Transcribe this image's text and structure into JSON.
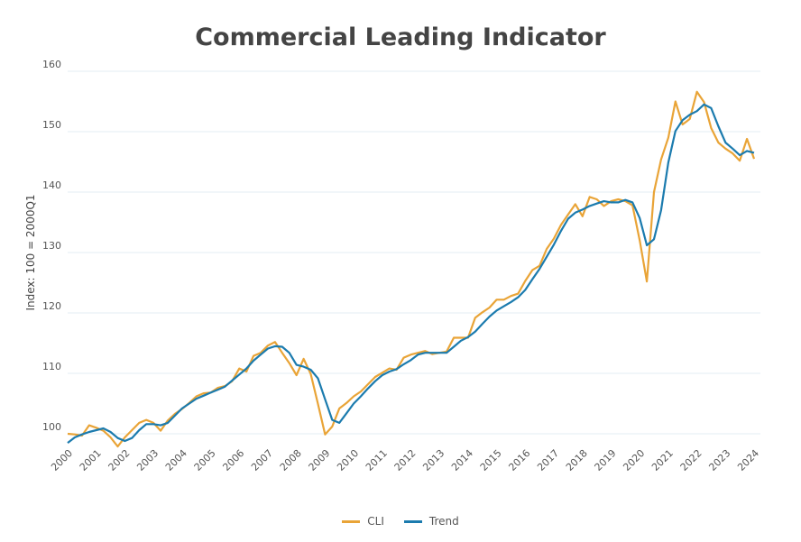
{
  "chart_data": {
    "type": "line",
    "title": "Commercial Leading Indicator",
    "ylabel": "Index: 100 = 2000Q1",
    "xlabel": "",
    "ylim": [
      97,
      160
    ],
    "yticks": [
      100,
      110,
      120,
      130,
      140,
      150,
      160
    ],
    "xticks": [
      "2000",
      "2001",
      "2002",
      "2003",
      "2004",
      "2005",
      "2006",
      "2007",
      "2008",
      "2009",
      "2010",
      "2011",
      "2012",
      "2013",
      "2014",
      "2015",
      "2016",
      "2017",
      "2018",
      "2019",
      "2020",
      "2021",
      "2022",
      "2023",
      "2024"
    ],
    "grid": "horizontal",
    "legend": "bottom",
    "x": [
      "2000Q1",
      "2000Q2",
      "2000Q3",
      "2000Q4",
      "2001Q1",
      "2001Q2",
      "2001Q3",
      "2001Q4",
      "2002Q1",
      "2002Q2",
      "2002Q3",
      "2002Q4",
      "2003Q1",
      "2003Q2",
      "2003Q3",
      "2003Q4",
      "2004Q1",
      "2004Q2",
      "2004Q3",
      "2004Q4",
      "2005Q1",
      "2005Q2",
      "2005Q3",
      "2005Q4",
      "2006Q1",
      "2006Q2",
      "2006Q3",
      "2006Q4",
      "2007Q1",
      "2007Q2",
      "2007Q3",
      "2007Q4",
      "2008Q1",
      "2008Q2",
      "2008Q3",
      "2008Q4",
      "2009Q1",
      "2009Q2",
      "2009Q3",
      "2009Q4",
      "2010Q1",
      "2010Q2",
      "2010Q3",
      "2010Q4",
      "2011Q1",
      "2011Q2",
      "2011Q3",
      "2011Q4",
      "2012Q1",
      "2012Q2",
      "2012Q3",
      "2012Q4",
      "2013Q1",
      "2013Q2",
      "2013Q3",
      "2013Q4",
      "2014Q1",
      "2014Q2",
      "2014Q3",
      "2014Q4",
      "2015Q1",
      "2015Q2",
      "2015Q3",
      "2015Q4",
      "2016Q1",
      "2016Q2",
      "2016Q3",
      "2016Q4",
      "2017Q1",
      "2017Q2",
      "2017Q3",
      "2017Q4",
      "2018Q1",
      "2018Q2",
      "2018Q3",
      "2018Q4",
      "2019Q1",
      "2019Q2",
      "2019Q3",
      "2019Q4",
      "2020Q1",
      "2020Q2",
      "2020Q3",
      "2020Q4",
      "2021Q1",
      "2021Q2",
      "2021Q3",
      "2021Q4",
      "2022Q1",
      "2022Q2",
      "2022Q3",
      "2022Q4",
      "2023Q1",
      "2023Q2",
      "2023Q3",
      "2023Q4",
      "2024Q1"
    ],
    "series": [
      {
        "name": "CLI",
        "color": "#E9A437",
        "values": [
          100.0,
          99.9,
          99.7,
          101.4,
          101.0,
          100.5,
          99.4,
          97.9,
          99.4,
          100.6,
          101.8,
          102.3,
          101.8,
          100.5,
          102.2,
          103.3,
          104.1,
          105.1,
          106.2,
          106.7,
          106.8,
          107.6,
          107.9,
          108.7,
          110.8,
          110.3,
          112.9,
          113.4,
          114.6,
          115.2,
          113.4,
          111.7,
          109.7,
          112.4,
          109.9,
          105.0,
          99.9,
          101.2,
          104.2,
          105.1,
          106.2,
          107.0,
          108.2,
          109.4,
          110.1,
          110.8,
          110.6,
          112.6,
          113.1,
          113.4,
          113.7,
          113.2,
          113.4,
          113.6,
          115.9,
          115.9,
          115.9,
          119.2,
          120.1,
          120.9,
          122.2,
          122.2,
          122.8,
          123.2,
          125.3,
          127.1,
          127.8,
          130.6,
          132.3,
          134.6,
          136.3,
          138.0,
          136.0,
          139.2,
          138.8,
          137.7,
          138.5,
          138.8,
          138.5,
          137.8,
          132.0,
          125.2,
          140.0,
          145.4,
          149.0,
          155.0,
          151.2,
          152.1,
          156.6,
          154.9,
          150.6,
          148.2,
          147.2,
          146.4,
          145.2,
          148.8,
          145.5
        ]
      },
      {
        "name": "Trend",
        "color": "#1B7BAE",
        "values": [
          98.5,
          99.4,
          99.9,
          100.3,
          100.6,
          100.9,
          100.3,
          99.3,
          98.8,
          99.3,
          100.6,
          101.6,
          101.6,
          101.4,
          101.8,
          103.0,
          104.2,
          105.0,
          105.8,
          106.3,
          106.8,
          107.3,
          107.8,
          108.8,
          109.8,
          110.8,
          112.1,
          113.1,
          114.1,
          114.5,
          114.4,
          113.4,
          111.4,
          111.1,
          110.6,
          109.2,
          105.7,
          102.3,
          101.8,
          103.4,
          105.0,
          106.2,
          107.5,
          108.7,
          109.7,
          110.3,
          110.7,
          111.5,
          112.2,
          113.1,
          113.4,
          113.4,
          113.4,
          113.4,
          114.4,
          115.4,
          116.0,
          116.9,
          118.2,
          119.4,
          120.4,
          121.1,
          121.8,
          122.6,
          123.8,
          125.6,
          127.3,
          129.3,
          131.3,
          133.6,
          135.6,
          136.6,
          137.1,
          137.7,
          138.1,
          138.5,
          138.3,
          138.3,
          138.7,
          138.3,
          135.7,
          131.2,
          132.2,
          137.0,
          144.9,
          150.1,
          151.9,
          152.8,
          153.4,
          154.5,
          153.9,
          150.9,
          148.2,
          147.2,
          146.1,
          146.8,
          146.5
        ]
      }
    ]
  }
}
